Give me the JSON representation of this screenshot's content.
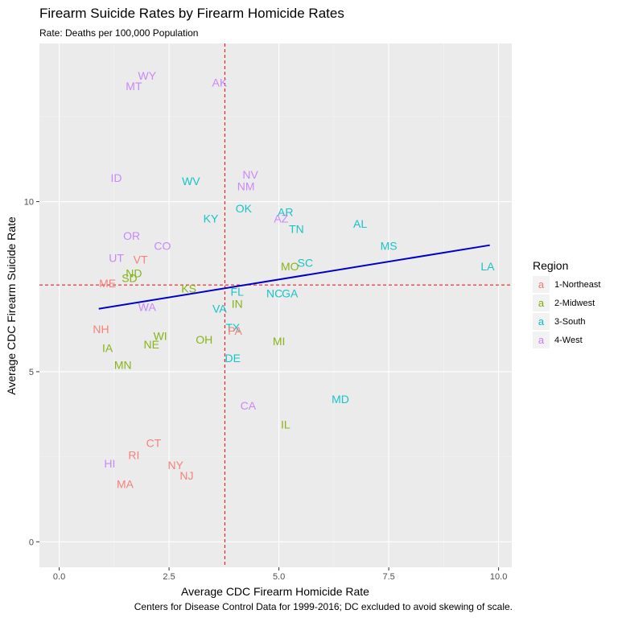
{
  "chart_data": {
    "type": "scatter",
    "title": "Firearm Suicide Rates by Firearm Homicide Rates",
    "subtitle": "Rate: Deaths per 100,000 Population",
    "xlabel": "Average CDC Firearm Homicide Rate",
    "ylabel": "Average CDC Firearm Suicide Rate",
    "caption": "Centers for Disease Control Data for 1999-2016; DC excluded to avoid skewing of scale.",
    "xlim": [
      -0.45,
      10.3
    ],
    "ylim": [
      -0.75,
      14.65
    ],
    "x_ticks": [
      0,
      2.5,
      5,
      7.5,
      10
    ],
    "x_tick_labels": [
      "0.0",
      "2.5",
      "5.0",
      "7.5",
      "10.0"
    ],
    "y_ticks": [
      0,
      5,
      10
    ],
    "y_tick_labels": [
      "0",
      "5",
      "10"
    ],
    "grid": true,
    "legend": {
      "title": "Region",
      "position": "right",
      "entries": [
        {
          "name": "1-Northeast",
          "color": "#F8766D"
        },
        {
          "name": "2-Midwest",
          "color": "#7CAE00"
        },
        {
          "name": "3-South",
          "color": "#00BFC4"
        },
        {
          "name": "4-West",
          "color": "#C77CFF"
        }
      ]
    },
    "legend_key_glyph": "a",
    "reference_lines": {
      "x_mean": 3.77,
      "y_mean": 7.55,
      "color": "#FF0000",
      "style": "dashed"
    },
    "trend_line": {
      "x": [
        0.9,
        9.8
      ],
      "y": [
        6.85,
        8.72
      ],
      "color": "#0000CC"
    },
    "points": [
      {
        "label": "WY",
        "region": "4-West",
        "x": 2.0,
        "y": 13.7
      },
      {
        "label": "MT",
        "region": "4-West",
        "x": 1.7,
        "y": 13.4
      },
      {
        "label": "AK",
        "region": "4-West",
        "x": 3.65,
        "y": 13.5
      },
      {
        "label": "ID",
        "region": "4-West",
        "x": 1.3,
        "y": 10.7
      },
      {
        "label": "WV",
        "region": "3-South",
        "x": 3.0,
        "y": 10.6
      },
      {
        "label": "NV",
        "region": "4-West",
        "x": 4.35,
        "y": 10.8
      },
      {
        "label": "NM",
        "region": "4-West",
        "x": 4.25,
        "y": 10.45
      },
      {
        "label": "OK",
        "region": "3-South",
        "x": 4.2,
        "y": 9.8
      },
      {
        "label": "AR",
        "region": "3-South",
        "x": 5.15,
        "y": 9.7
      },
      {
        "label": "AZ",
        "region": "4-West",
        "x": 5.05,
        "y": 9.5
      },
      {
        "label": "TN",
        "region": "3-South",
        "x": 5.4,
        "y": 9.2
      },
      {
        "label": "AL",
        "region": "3-South",
        "x": 6.85,
        "y": 9.35
      },
      {
        "label": "KY",
        "region": "3-South",
        "x": 3.45,
        "y": 9.5
      },
      {
        "label": "OR",
        "region": "4-West",
        "x": 1.65,
        "y": 9.0
      },
      {
        "label": "CO",
        "region": "4-West",
        "x": 2.35,
        "y": 8.7
      },
      {
        "label": "MS",
        "region": "3-South",
        "x": 7.5,
        "y": 8.7
      },
      {
        "label": "UT",
        "region": "4-West",
        "x": 1.3,
        "y": 8.35
      },
      {
        "label": "VT",
        "region": "1-Northeast",
        "x": 1.85,
        "y": 8.3
      },
      {
        "label": "LA",
        "region": "3-South",
        "x": 9.75,
        "y": 8.1
      },
      {
        "label": "SC",
        "region": "3-South",
        "x": 5.6,
        "y": 8.2
      },
      {
        "label": "MO",
        "region": "2-Midwest",
        "x": 5.25,
        "y": 8.1
      },
      {
        "label": "ND",
        "region": "2-Midwest",
        "x": 1.7,
        "y": 7.9
      },
      {
        "label": "SD",
        "region": "2-Midwest",
        "x": 1.6,
        "y": 7.75
      },
      {
        "label": "ME",
        "region": "1-Northeast",
        "x": 1.1,
        "y": 7.6
      },
      {
        "label": "KS",
        "region": "2-Midwest",
        "x": 2.95,
        "y": 7.45
      },
      {
        "label": "FL",
        "region": "3-South",
        "x": 4.05,
        "y": 7.35
      },
      {
        "label": "NC",
        "region": "3-South",
        "x": 4.9,
        "y": 7.3
      },
      {
        "label": "GA",
        "region": "3-South",
        "x": 5.25,
        "y": 7.3
      },
      {
        "label": "IN",
        "region": "2-Midwest",
        "x": 4.05,
        "y": 7.0
      },
      {
        "label": "WA",
        "region": "4-West",
        "x": 2.0,
        "y": 6.9
      },
      {
        "label": "VA",
        "region": "3-South",
        "x": 3.65,
        "y": 6.85
      },
      {
        "label": "NH",
        "region": "1-Northeast",
        "x": 0.95,
        "y": 6.25
      },
      {
        "label": "TX",
        "region": "3-South",
        "x": 3.95,
        "y": 6.3
      },
      {
        "label": "PA",
        "region": "1-Northeast",
        "x": 4.0,
        "y": 6.2
      },
      {
        "label": "WI",
        "region": "2-Midwest",
        "x": 2.3,
        "y": 6.05
      },
      {
        "label": "OH",
        "region": "2-Midwest",
        "x": 3.3,
        "y": 5.95
      },
      {
        "label": "MI",
        "region": "2-Midwest",
        "x": 5.0,
        "y": 5.9
      },
      {
        "label": "NE",
        "region": "2-Midwest",
        "x": 2.1,
        "y": 5.8
      },
      {
        "label": "IA",
        "region": "2-Midwest",
        "x": 1.1,
        "y": 5.7
      },
      {
        "label": "DE",
        "region": "3-South",
        "x": 3.95,
        "y": 5.4
      },
      {
        "label": "MN",
        "region": "2-Midwest",
        "x": 1.45,
        "y": 5.2
      },
      {
        "label": "MD",
        "region": "3-South",
        "x": 6.4,
        "y": 4.2
      },
      {
        "label": "CA",
        "region": "4-West",
        "x": 4.3,
        "y": 4.0
      },
      {
        "label": "IL",
        "region": "2-Midwest",
        "x": 5.15,
        "y": 3.45
      },
      {
        "label": "CT",
        "region": "1-Northeast",
        "x": 2.15,
        "y": 2.9
      },
      {
        "label": "RI",
        "region": "1-Northeast",
        "x": 1.7,
        "y": 2.55
      },
      {
        "label": "HI",
        "region": "4-West",
        "x": 1.15,
        "y": 2.3
      },
      {
        "label": "NY",
        "region": "1-Northeast",
        "x": 2.65,
        "y": 2.25
      },
      {
        "label": "NJ",
        "region": "1-Northeast",
        "x": 2.9,
        "y": 1.95
      },
      {
        "label": "MA",
        "region": "1-Northeast",
        "x": 1.5,
        "y": 1.7
      }
    ]
  }
}
